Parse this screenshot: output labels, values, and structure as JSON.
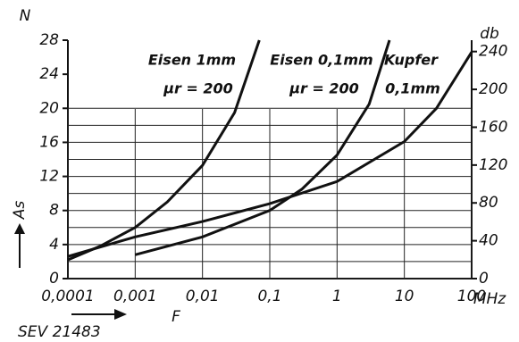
{
  "chart_data": {
    "type": "line",
    "log_x": true,
    "grid": true,
    "color": "#111111",
    "x_label": "F",
    "x_unit": "MHz",
    "y_label": "As",
    "y_unit": "N",
    "y2_unit": "db",
    "caption": "SEV 21483",
    "xlim": [
      0.0001,
      100
    ],
    "xticks": [
      {
        "value": 0.0001,
        "label": "0,0001"
      },
      {
        "value": 0.001,
        "label": "0,001"
      },
      {
        "value": 0.01,
        "label": "0,01"
      },
      {
        "value": 0.1,
        "label": "0,1"
      },
      1,
      10,
      100
    ],
    "ylim": [
      0,
      28
    ],
    "yticks": [
      0,
      4,
      8,
      12,
      16,
      20,
      24,
      28
    ],
    "y2lim": [
      0,
      252
    ],
    "y2ticks": [
      0,
      40,
      80,
      120,
      160,
      200,
      240
    ],
    "series": [
      {
        "name": "Eisen 1mm",
        "color": "#111111",
        "x": [
          0.0001,
          0.0003,
          0.001,
          0.003,
          0.01,
          0.03,
          0.07
        ],
        "values": [
          2.2,
          3.8,
          6,
          9,
          13.3,
          19.5,
          28
        ]
      },
      {
        "name": "Eisen 0,1mm",
        "color": "#111111",
        "x": [
          0.001,
          0.01,
          0.1,
          0.3,
          1,
          3,
          6
        ],
        "values": [
          2.8,
          4.9,
          8,
          10.5,
          14.5,
          20.5,
          28
        ]
      },
      {
        "name": "Kupfer",
        "color": "#111111",
        "x": [
          0.0001,
          0.001,
          0.01,
          0.1,
          1,
          10,
          30,
          100
        ],
        "values": [
          2.6,
          4.9,
          6.7,
          8.8,
          11.4,
          16.1,
          20,
          26.6
        ]
      }
    ],
    "annotations": [
      "μr = 200",
      "μr = 200",
      "0,1mm"
    ]
  }
}
